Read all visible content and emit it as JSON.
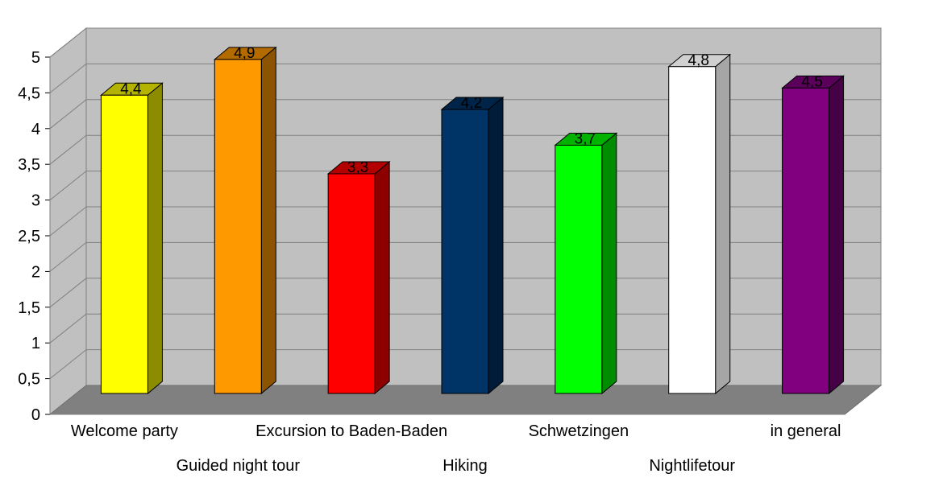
{
  "chart_data": {
    "type": "bar",
    "title": "",
    "xlabel": "",
    "ylabel": "",
    "ylim": [
      0,
      5
    ],
    "y_ticks": [
      "0",
      "0,5",
      "1",
      "1,5",
      "2",
      "2,5",
      "3",
      "3,5",
      "4",
      "4,5",
      "5"
    ],
    "grid": true,
    "style": "3d-column",
    "categories": [
      "Welcome party",
      "Guided night tour",
      "Excursion to Baden-Baden",
      "Hiking",
      "Schwetzingen",
      "Nightlifetour",
      "in general"
    ],
    "values": [
      4.4,
      4.9,
      3.3,
      4.2,
      3.7,
      4.8,
      4.5
    ],
    "value_labels": [
      "4,4",
      "4,9",
      "3,3",
      "4,2",
      "3,7",
      "4,8",
      "4,5"
    ],
    "colors": [
      "#ffff00",
      "#ff9900",
      "#ff0000",
      "#003366",
      "#00ff00",
      "#ffffff",
      "#800080"
    ],
    "side_colors": [
      "#8c8c00",
      "#8c5400",
      "#8c0000",
      "#001c38",
      "#008c00",
      "#a6a6a6",
      "#460046"
    ],
    "top_colors": [
      "#b3b300",
      "#b36b00",
      "#b30000",
      "#002447",
      "#00b300",
      "#d0d0d0",
      "#5a005a"
    ],
    "wall_color": "#c0c0c0",
    "floor_color": "#808080"
  }
}
